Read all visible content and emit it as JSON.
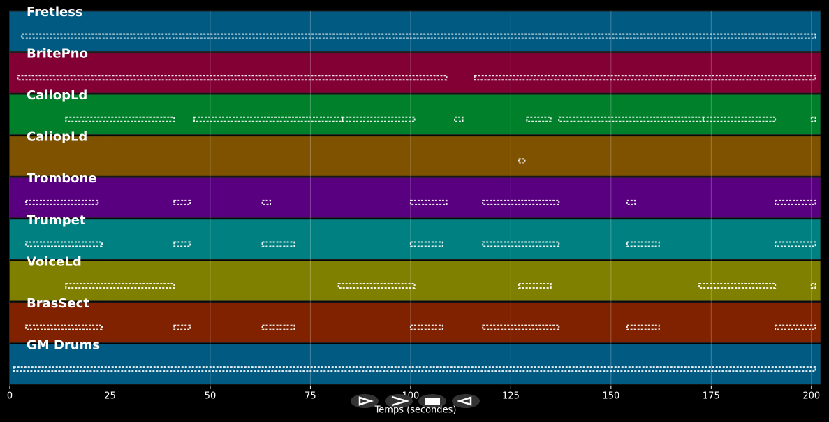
{
  "chart_data": {
    "type": "pianoroll",
    "x_label": "Temps (secondes)",
    "xlim": [
      0,
      202.3
    ],
    "xticks": [
      0,
      25,
      50,
      75,
      100,
      125,
      150,
      175,
      200
    ],
    "grid": true,
    "tracks": [
      {
        "name": "Fretless",
        "color": "#005a82",
        "notes": [
          [
            3,
            201
          ]
        ]
      },
      {
        "name": "BritePno",
        "color": "#820034",
        "notes": [
          [
            2,
            109
          ],
          [
            116,
            201
          ]
        ]
      },
      {
        "name": "CaliopLd",
        "color": "#00802a",
        "notes": [
          [
            14,
            41
          ],
          [
            46,
            83
          ],
          [
            83,
            101
          ],
          [
            111,
            113
          ],
          [
            129,
            135
          ],
          [
            137,
            173
          ],
          [
            173,
            191
          ],
          [
            200,
            201
          ]
        ]
      },
      {
        "name": "CaliopLd",
        "color": "#7f5200",
        "notes": [
          [
            127,
            128.5
          ]
        ]
      },
      {
        "name": "Trombone",
        "color": "#580080",
        "notes": [
          [
            4,
            22
          ],
          [
            41,
            45
          ],
          [
            63,
            65
          ],
          [
            100,
            109
          ],
          [
            118,
            137
          ],
          [
            154,
            156
          ],
          [
            191,
            201
          ]
        ]
      },
      {
        "name": "Trumpet",
        "color": "#008080",
        "notes": [
          [
            4,
            23
          ],
          [
            41,
            45
          ],
          [
            63,
            71
          ],
          [
            100,
            108
          ],
          [
            118,
            137
          ],
          [
            154,
            162
          ],
          [
            191,
            201
          ]
        ]
      },
      {
        "name": "VoiceLd",
        "color": "#808000",
        "notes": [
          [
            14,
            41
          ],
          [
            82,
            101
          ],
          [
            127,
            135
          ],
          [
            172,
            191
          ],
          [
            200,
            201
          ]
        ]
      },
      {
        "name": "BrasSect",
        "color": "#802200",
        "notes": [
          [
            4,
            23
          ],
          [
            41,
            45
          ],
          [
            63,
            71
          ],
          [
            100,
            108
          ],
          [
            118,
            137
          ],
          [
            154,
            162
          ],
          [
            191,
            201
          ]
        ]
      },
      {
        "name": "GM Drums",
        "color": "#005a82",
        "notes": [
          [
            1,
            201
          ]
        ]
      }
    ]
  }
}
